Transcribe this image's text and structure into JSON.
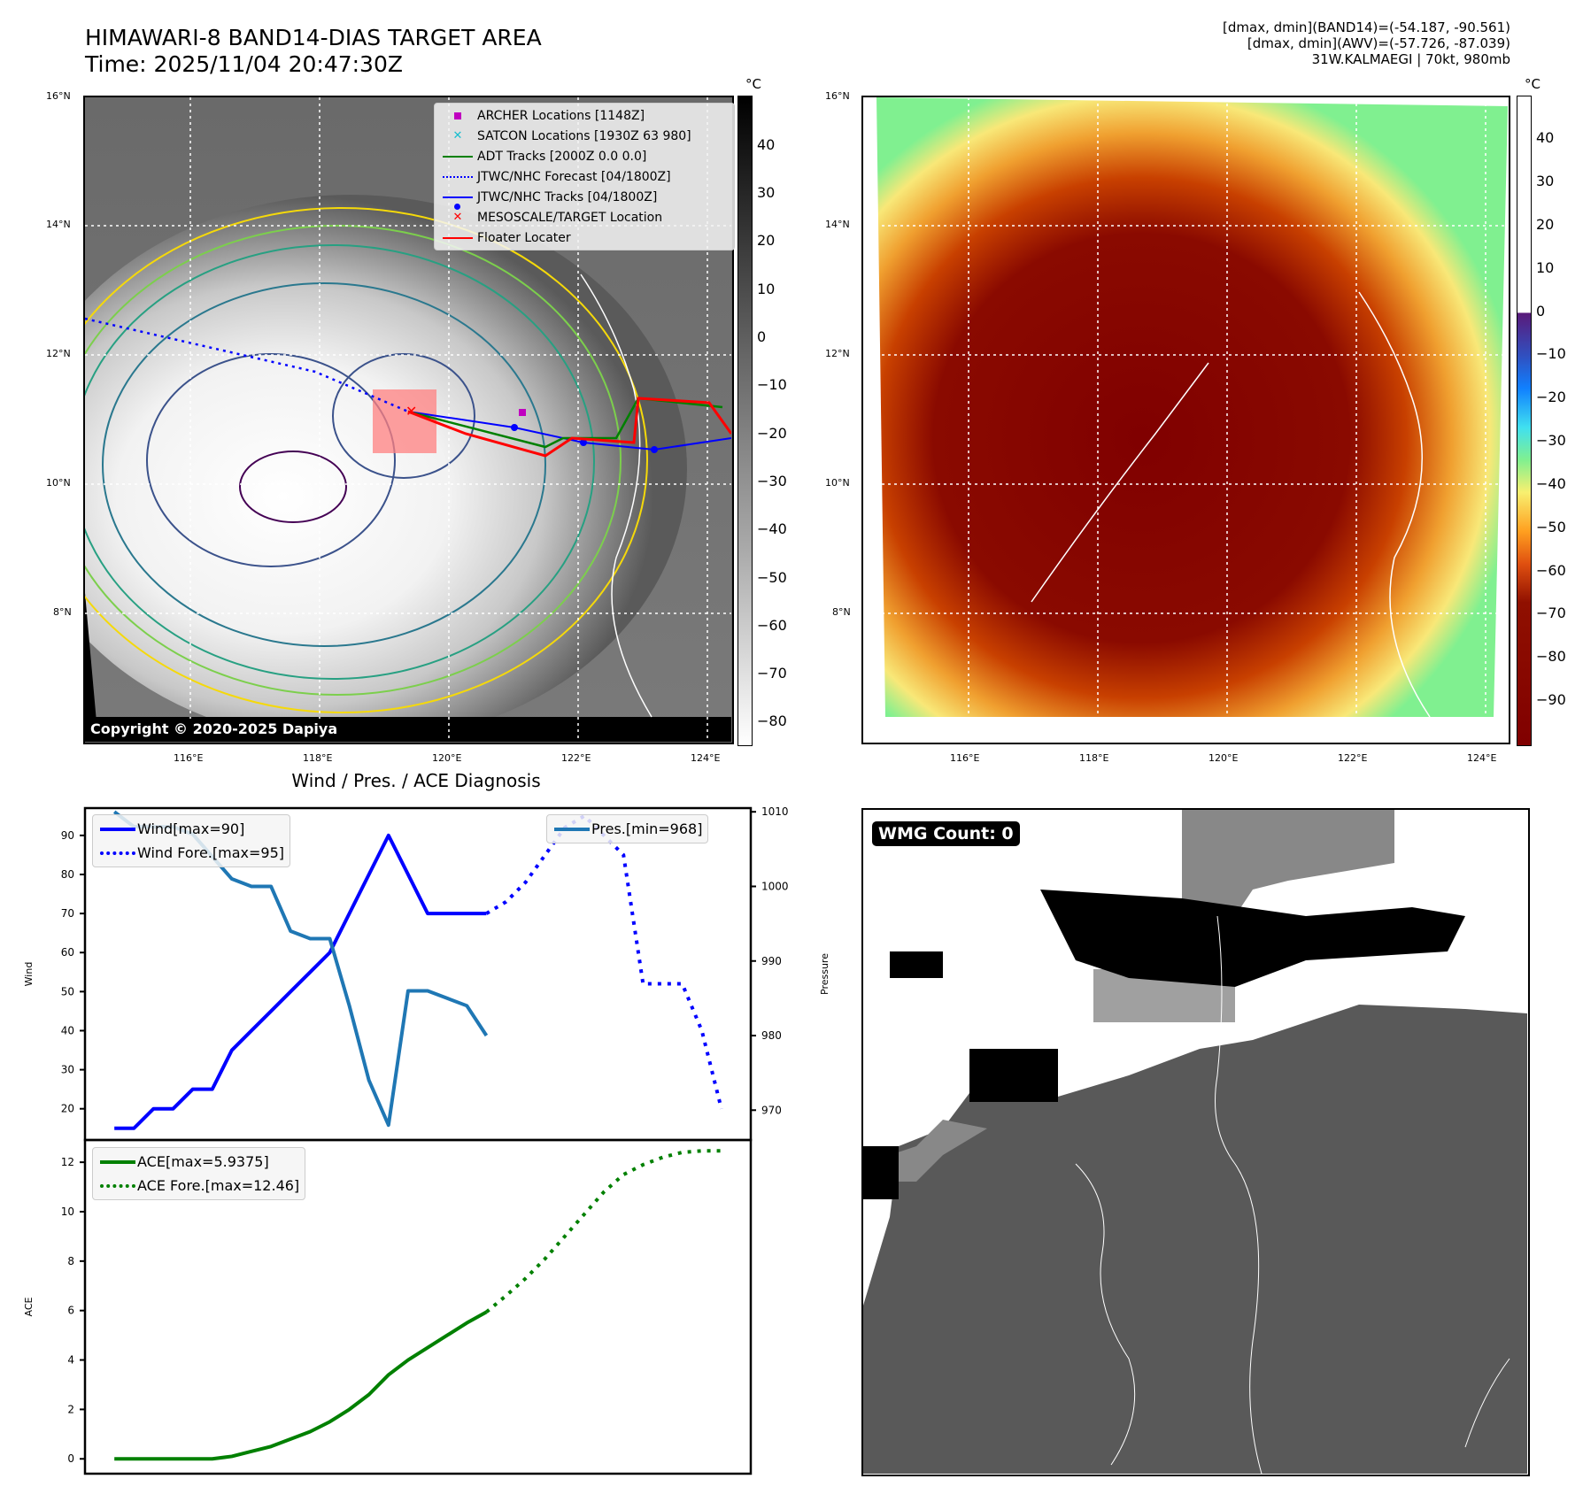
{
  "header": {
    "title_line1": "HIMAWARI-8 BAND14-DIAS TARGET AREA",
    "title_line2": "Time: 2025/11/04 20:47:30Z",
    "info_line1": "[dmax, dmin](BAND14)=(-54.187, -90.561)",
    "info_line2": "[dmax, dmin](AWV)=(-57.726, -87.039)",
    "info_line3": "31W.KALMAEGI | 70kt, 980mb"
  },
  "map_left": {
    "lat_ticks": [
      "16°N",
      "14°N",
      "12°N",
      "10°N",
      "8°N"
    ],
    "lon_ticks": [
      "116°E",
      "118°E",
      "120°E",
      "122°E",
      "124°E"
    ],
    "colorbar_unit": "°C",
    "colorbar_ticks": [
      "40",
      "30",
      "20",
      "10",
      "0",
      "−10",
      "−20",
      "−30",
      "−40",
      "−50",
      "−60",
      "−70",
      "−80"
    ],
    "copyright": "Copyright © 2020-2025 Dapiya",
    "legend": [
      {
        "label": "ARCHER Locations [1148Z]",
        "icon": "magenta-square-icon",
        "color": "#c000c0"
      },
      {
        "label": "SATCON Locations [1930Z 63 980]",
        "icon": "cyan-x-icon",
        "color": "#17becf"
      },
      {
        "label": "ADT Tracks [2000Z 0.0 0.0]",
        "icon": "green-line-icon",
        "color": "#008000"
      },
      {
        "label": "JTWC/NHC Forecast [04/1800Z]",
        "icon": "blue-dotted-line-icon",
        "color": "#0000ff"
      },
      {
        "label": "JTWC/NHC Tracks [04/1800Z]",
        "icon": "blue-line-dot-icon",
        "color": "#0000ff"
      },
      {
        "label": "MESOSCALE/TARGET Location",
        "icon": "red-x-icon",
        "color": "#ff0000"
      },
      {
        "label": "Floater Locater",
        "icon": "red-line-icon",
        "color": "#ff0000"
      }
    ]
  },
  "map_right": {
    "lat_ticks": [
      "16°N",
      "14°N",
      "12°N",
      "10°N",
      "8°N"
    ],
    "lon_ticks": [
      "116°E",
      "118°E",
      "120°E",
      "122°E",
      "124°E"
    ],
    "colorbar_unit": "°C",
    "colorbar_ticks": [
      "40",
      "30",
      "20",
      "10",
      "0",
      "−10",
      "−20",
      "−30",
      "−40",
      "−50",
      "−60",
      "−70",
      "−80",
      "−90"
    ]
  },
  "wmg_panel": {
    "label": "WMG Count: 0"
  },
  "chart_data": [
    {
      "type": "line",
      "title": "Wind / Pres. / ACE Diagnosis",
      "ylabel": "Wind",
      "ylabel_right": "Pressure",
      "ylim": [
        12,
        97
      ],
      "ylim_right": [
        966,
        1010.5
      ],
      "yticks": [
        20,
        30,
        40,
        50,
        60,
        70,
        80,
        90
      ],
      "yticks_right": [
        970,
        980,
        990,
        1000,
        1010
      ],
      "x": [
        0,
        1,
        2,
        3,
        4,
        5,
        6,
        7,
        8,
        9,
        10,
        11,
        12,
        13,
        14,
        15,
        16,
        17,
        18,
        19,
        20,
        21,
        22,
        23,
        24,
        25,
        26,
        27,
        28,
        29,
        30,
        31
      ],
      "series": [
        {
          "name": "Wind[max=90]",
          "axis": "left",
          "style": "solid",
          "color": "#0000ff",
          "x": [
            0,
            1,
            2,
            3,
            4,
            5,
            6,
            7,
            8,
            9,
            10,
            11,
            12,
            13,
            14,
            15,
            16,
            17,
            18,
            19
          ],
          "values": [
            15,
            15,
            20,
            20,
            25,
            25,
            35,
            40,
            45,
            50,
            55,
            60,
            70,
            80,
            90,
            80,
            70,
            70,
            70,
            70
          ]
        },
        {
          "name": "Wind Fore.[max=95]",
          "axis": "left",
          "style": "dotted",
          "color": "#0000ff",
          "x": [
            19,
            20,
            21,
            22,
            23,
            24,
            25,
            26,
            27,
            28,
            29,
            30,
            31
          ],
          "values": [
            70,
            73,
            78,
            85,
            92,
            95,
            90,
            85,
            52,
            52,
            52,
            40,
            20
          ]
        },
        {
          "name": "Pres.[min=968]",
          "axis": "right",
          "style": "solid",
          "color": "#1f77b4",
          "x": [
            0,
            1,
            2,
            3,
            4,
            5,
            6,
            7,
            8,
            9,
            10,
            11,
            12,
            13,
            14,
            15,
            16,
            17,
            18,
            19
          ],
          "values": [
            1010,
            1008,
            1008,
            1008,
            1007,
            1004,
            1001,
            1000,
            1000,
            994,
            993,
            993,
            984,
            974,
            968,
            986,
            986,
            985,
            984,
            980
          ]
        }
      ]
    },
    {
      "type": "line",
      "ylabel": "ACE",
      "ylim": [
        -0.6,
        12.9
      ],
      "yticks": [
        0,
        2,
        4,
        6,
        8,
        10,
        12
      ],
      "series": [
        {
          "name": "ACE[max=5.9375]",
          "style": "solid",
          "color": "#008000",
          "x": [
            0,
            1,
            2,
            3,
            4,
            5,
            6,
            7,
            8,
            9,
            10,
            11,
            12,
            13,
            14,
            15,
            16,
            17,
            18,
            19
          ],
          "values": [
            0,
            0,
            0,
            0,
            0,
            0,
            0.1,
            0.3,
            0.5,
            0.8,
            1.1,
            1.5,
            2.0,
            2.6,
            3.4,
            4.0,
            4.5,
            5.0,
            5.5,
            5.94
          ]
        },
        {
          "name": "ACE Fore.[max=12.46]",
          "style": "dotted",
          "color": "#008000",
          "x": [
            19,
            20,
            21,
            22,
            23,
            24,
            25,
            26,
            27,
            28,
            29,
            30,
            31
          ],
          "values": [
            5.94,
            6.6,
            7.3,
            8.1,
            9.0,
            9.9,
            10.8,
            11.5,
            11.9,
            12.2,
            12.4,
            12.46,
            12.46
          ]
        }
      ]
    }
  ]
}
